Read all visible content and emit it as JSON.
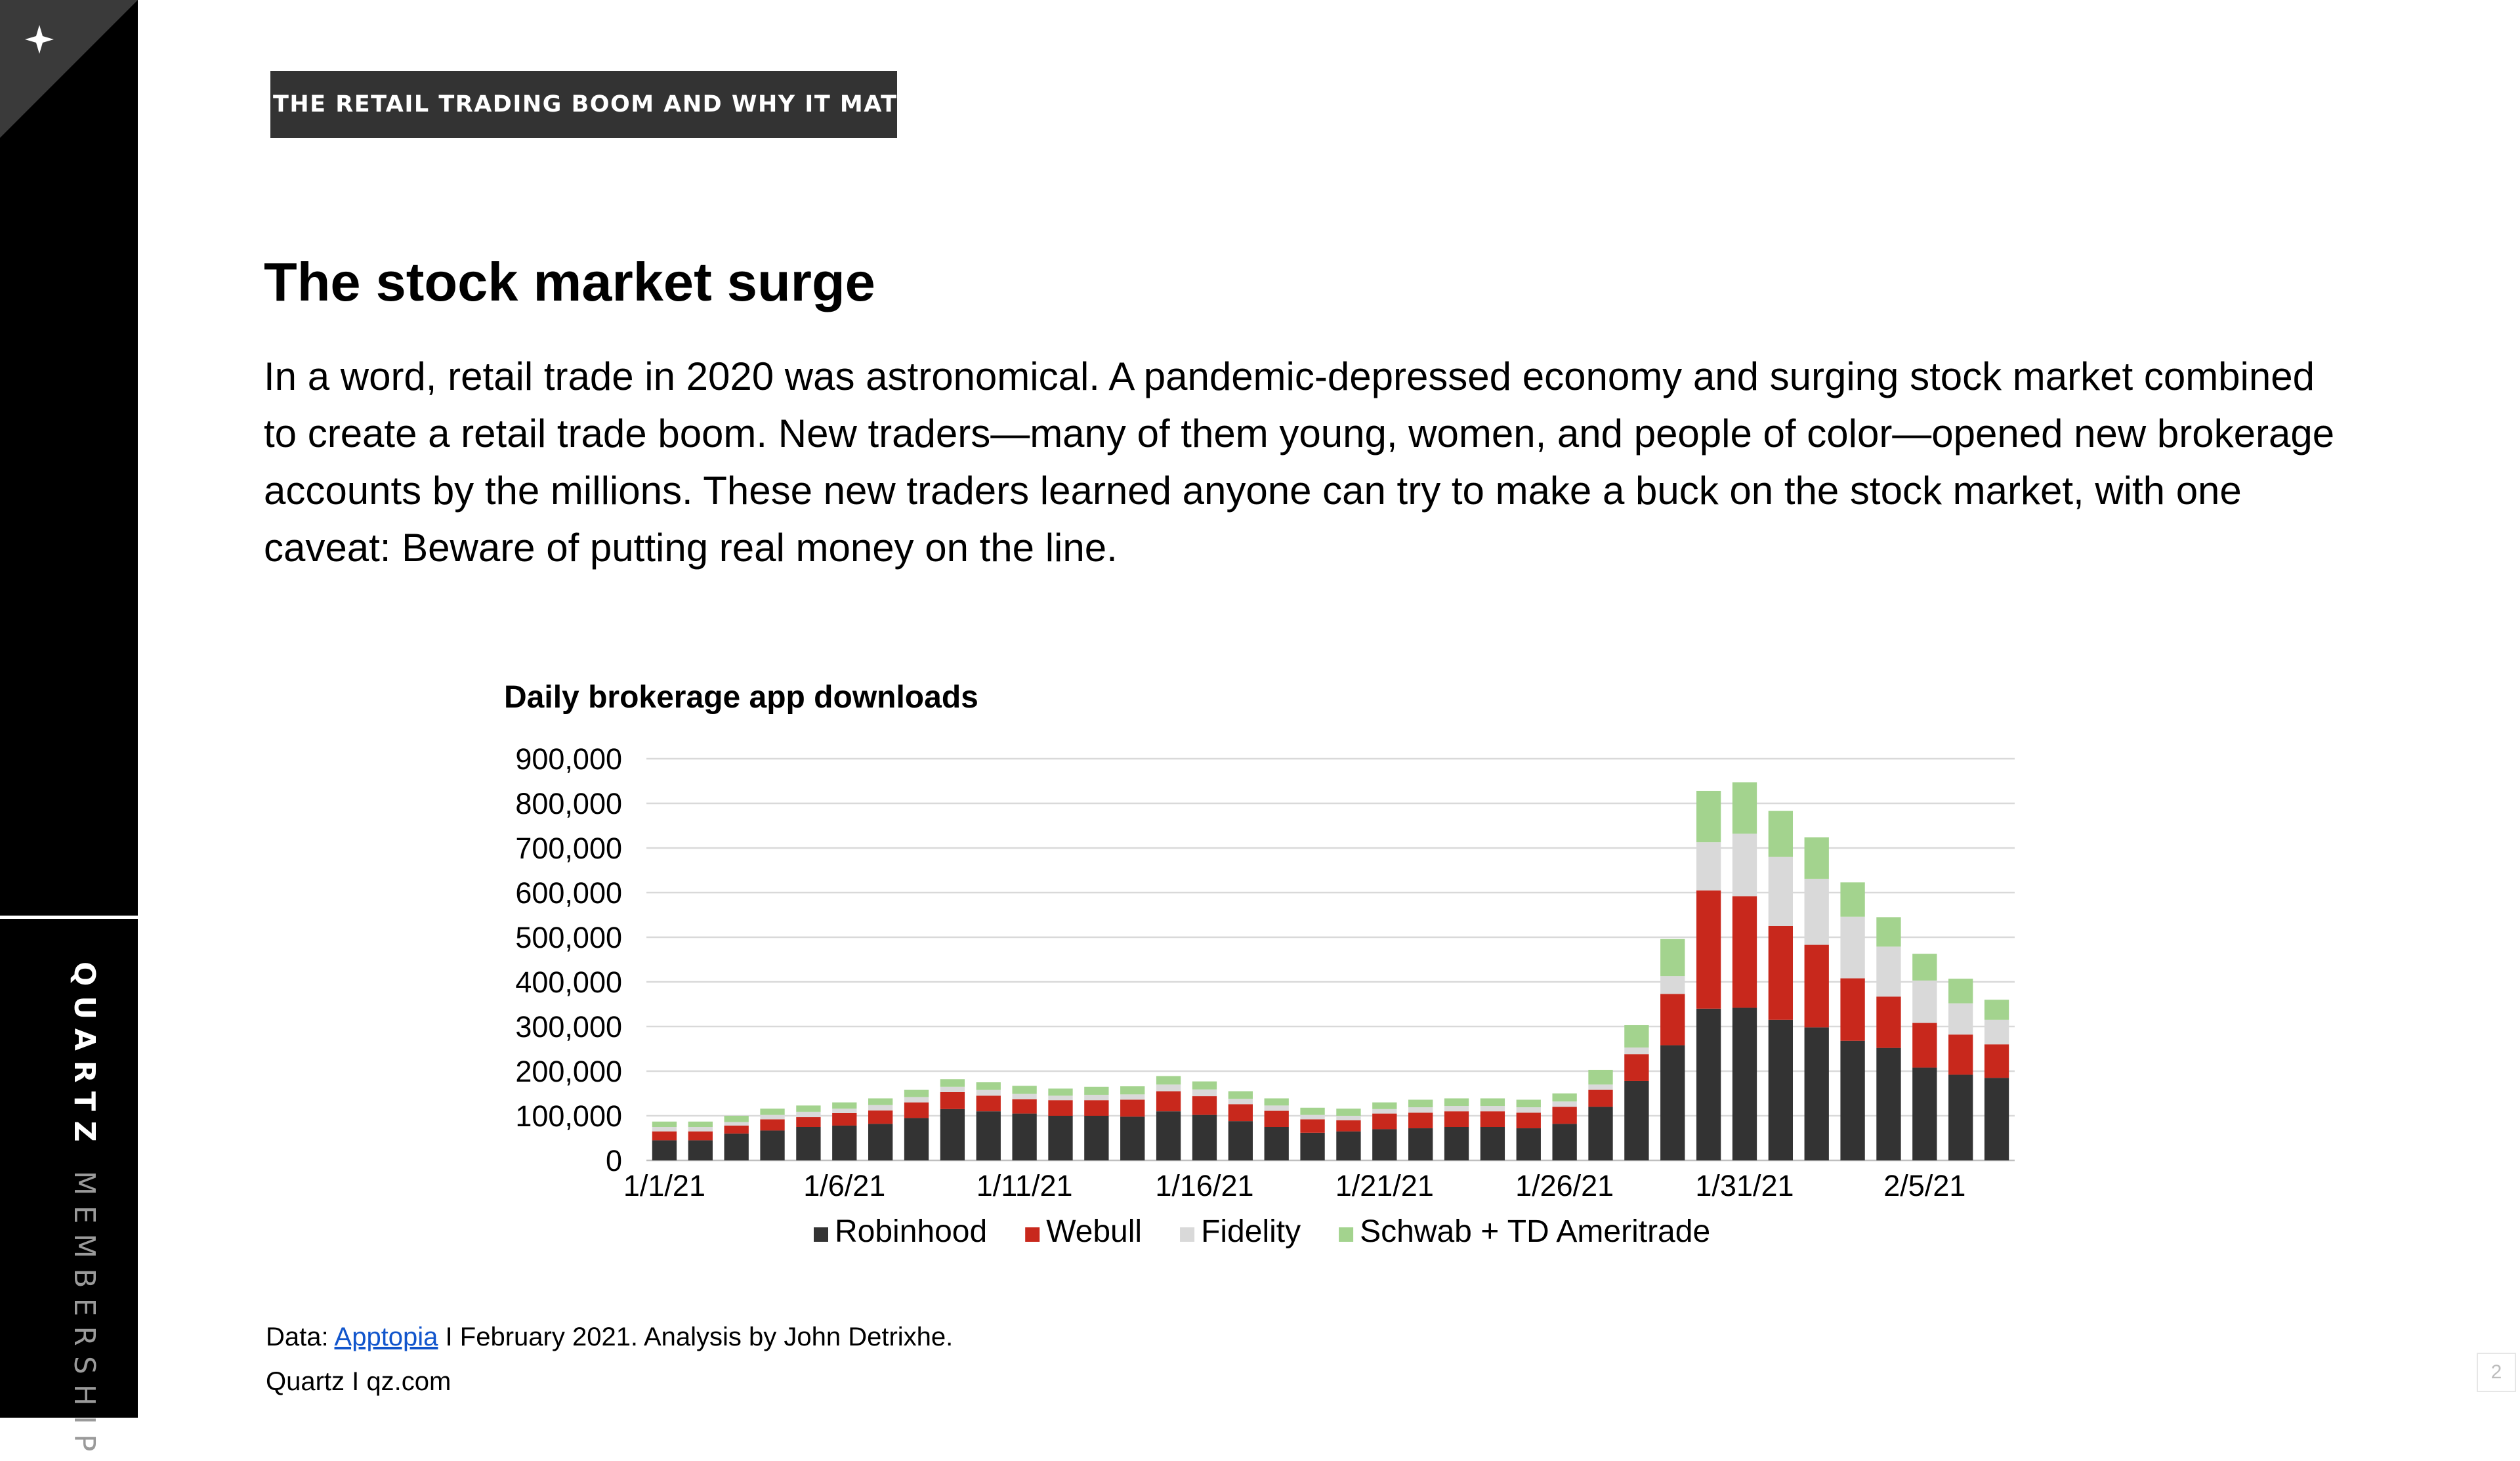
{
  "sidebar": {
    "logo_icon": "sparkle-icon",
    "brand_primary": "QUARTZ",
    "brand_secondary": "MEMBERSHIP"
  },
  "header": {
    "tag": "THE RETAIL TRADING BOOM AND WHY IT MATTERS"
  },
  "article": {
    "title": "The stock market surge",
    "body": "In a word, retail trade in 2020 was astronomical.  A pandemic-depressed economy and surging stock market combined to create a retail trade boom. New traders—many of them young, women, and people of color—opened new brokerage accounts by the millions. These new traders learned anyone can try to make a buck on the stock market, with one caveat: Beware of putting real money on the line."
  },
  "chart_data": {
    "type": "bar",
    "stacked": true,
    "title": "Daily brokerage app downloads",
    "xlabel": "",
    "ylabel": "",
    "ylim": [
      0,
      900000
    ],
    "yticks": [
      "0",
      "100,000",
      "200,000",
      "300,000",
      "400,000",
      "500,000",
      "600,000",
      "700,000",
      "800,000",
      "900,000"
    ],
    "grid": true,
    "legend_position": "bottom",
    "categories": [
      "1/1/21",
      "1/2/21",
      "1/3/21",
      "1/4/21",
      "1/5/21",
      "1/6/21",
      "1/7/21",
      "1/8/21",
      "1/9/21",
      "1/10/21",
      "1/11/21",
      "1/12/21",
      "1/13/21",
      "1/14/21",
      "1/15/21",
      "1/16/21",
      "1/17/21",
      "1/18/21",
      "1/19/21",
      "1/20/21",
      "1/21/21",
      "1/22/21",
      "1/23/21",
      "1/24/21",
      "1/25/21",
      "1/26/21",
      "1/27/21",
      "1/28/21",
      "1/29/21",
      "1/30/21",
      "1/31/21",
      "2/1/21",
      "2/2/21",
      "2/3/21",
      "2/4/21",
      "2/5/21",
      "2/6/21",
      "2/7/21"
    ],
    "tick_labels": [
      "1/1/21",
      "1/6/21",
      "1/11/21",
      "1/16/21",
      "1/21/21",
      "1/26/21",
      "1/31/21",
      "2/5/21"
    ],
    "series": [
      {
        "name": "Robinhood",
        "color": "#333333",
        "values": [
          45000,
          45000,
          60000,
          67000,
          75000,
          78000,
          82000,
          95000,
          115000,
          110000,
          105000,
          100000,
          100000,
          98000,
          110000,
          102000,
          88000,
          75000,
          62000,
          65000,
          70000,
          72000,
          75000,
          75000,
          72000,
          82000,
          120000,
          178000,
          258000,
          340000,
          342000,
          315000,
          298000,
          268000,
          252000,
          208000,
          192000,
          185000
        ]
      },
      {
        "name": "Webull",
        "color": "#c8281c",
        "values": [
          20000,
          20000,
          18000,
          25000,
          22000,
          28000,
          30000,
          35000,
          38000,
          35000,
          32000,
          35000,
          35000,
          38000,
          45000,
          42000,
          38000,
          36000,
          30000,
          25000,
          35000,
          35000,
          35000,
          35000,
          35000,
          38000,
          38000,
          60000,
          115000,
          265000,
          250000,
          210000,
          185000,
          140000,
          115000,
          100000,
          90000,
          75000
        ]
      },
      {
        "name": "Fidelity",
        "color": "#d9d9d9",
        "values": [
          10000,
          10000,
          8000,
          10000,
          12000,
          10000,
          12000,
          12000,
          12000,
          13000,
          12000,
          10000,
          12000,
          12000,
          15000,
          15000,
          12000,
          12000,
          10000,
          10000,
          10000,
          12000,
          12000,
          12000,
          12000,
          12000,
          12000,
          15000,
          40000,
          108000,
          140000,
          155000,
          148000,
          138000,
          112000,
          95000,
          70000,
          55000
        ]
      },
      {
        "name": "Schwab + TD Ameritrade",
        "color": "#a3d38e",
        "values": [
          12000,
          12000,
          14000,
          14000,
          14000,
          14000,
          15000,
          16000,
          17000,
          17000,
          18000,
          16000,
          18000,
          18000,
          19000,
          18000,
          17000,
          16000,
          16000,
          16000,
          15000,
          17000,
          17000,
          17000,
          17000,
          18000,
          33000,
          50000,
          83000,
          115000,
          115000,
          103000,
          93000,
          77000,
          66000,
          60000,
          55000,
          45000
        ]
      }
    ]
  },
  "footer": {
    "source_prefix": "Data: ",
    "source_link": "Apptopia",
    "source_suffix": " I February 2021. Analysis by John Detrixhe.",
    "brand": "Quartz I qz.com",
    "page_number": "2"
  }
}
